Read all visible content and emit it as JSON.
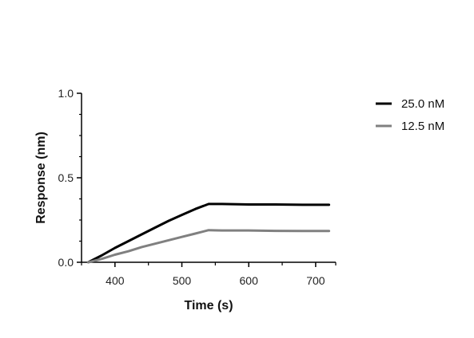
{
  "chart_data": {
    "type": "line",
    "title": "",
    "xlabel": "Time (s)",
    "ylabel": "Response (nm)",
    "xlim": [
      350,
      730
    ],
    "ylim": [
      0,
      1.0
    ],
    "x_ticks": [
      400,
      500,
      600,
      700
    ],
    "y_ticks": [
      0.0,
      0.5,
      1.0
    ],
    "x_tick_labels": [
      "400",
      "500",
      "600",
      "700"
    ],
    "y_tick_labels": [
      "0.0",
      "0.5",
      "1.0"
    ],
    "grid": false,
    "legend_position": "top-right",
    "series": [
      {
        "name": "25.0 nM",
        "color": "#000000",
        "points": [
          [
            360,
            0.0
          ],
          [
            380,
            0.04
          ],
          [
            400,
            0.085
          ],
          [
            420,
            0.125
          ],
          [
            440,
            0.165
          ],
          [
            460,
            0.205
          ],
          [
            480,
            0.245
          ],
          [
            500,
            0.28
          ],
          [
            520,
            0.315
          ],
          [
            540,
            0.345
          ],
          [
            560,
            0.345
          ],
          [
            600,
            0.342
          ],
          [
            640,
            0.342
          ],
          [
            680,
            0.34
          ],
          [
            720,
            0.34
          ]
        ]
      },
      {
        "name": "12.5 nM",
        "color": "#808080",
        "points": [
          [
            360,
            0.0
          ],
          [
            380,
            0.02
          ],
          [
            400,
            0.045
          ],
          [
            420,
            0.065
          ],
          [
            440,
            0.09
          ],
          [
            460,
            0.11
          ],
          [
            480,
            0.13
          ],
          [
            500,
            0.15
          ],
          [
            520,
            0.17
          ],
          [
            540,
            0.19
          ],
          [
            560,
            0.188
          ],
          [
            600,
            0.188
          ],
          [
            640,
            0.186
          ],
          [
            680,
            0.185
          ],
          [
            720,
            0.185
          ]
        ]
      }
    ]
  }
}
